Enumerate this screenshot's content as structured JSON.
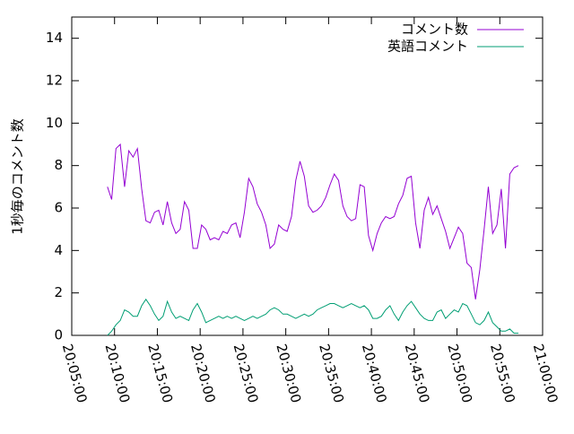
{
  "chart_data": {
    "type": "line",
    "ylabel": "1秒毎のコメント数",
    "x": [
      "20:09:10",
      "20:09:40",
      "20:10:10",
      "20:10:40",
      "20:11:10",
      "20:11:40",
      "20:12:10",
      "20:12:40",
      "20:13:10",
      "20:13:40",
      "20:14:10",
      "20:14:40",
      "20:15:10",
      "20:15:40",
      "20:16:10",
      "20:16:40",
      "20:17:10",
      "20:17:40",
      "20:18:10",
      "20:18:40",
      "20:19:10",
      "20:19:40",
      "20:20:10",
      "20:20:40",
      "20:21:10",
      "20:21:40",
      "20:22:10",
      "20:22:40",
      "20:23:10",
      "20:23:40",
      "20:24:10",
      "20:24:40",
      "20:25:10",
      "20:25:40",
      "20:26:10",
      "20:26:40",
      "20:27:10",
      "20:27:40",
      "20:28:10",
      "20:28:40",
      "20:29:10",
      "20:29:40",
      "20:30:10",
      "20:30:40",
      "20:31:10",
      "20:31:40",
      "20:32:10",
      "20:32:40",
      "20:33:10",
      "20:33:40",
      "20:34:10",
      "20:34:40",
      "20:35:10",
      "20:35:40",
      "20:36:10",
      "20:36:40",
      "20:37:10",
      "20:37:40",
      "20:38:10",
      "20:38:40",
      "20:39:10",
      "20:39:40",
      "20:40:10",
      "20:40:40",
      "20:41:10",
      "20:41:40",
      "20:42:10",
      "20:42:40",
      "20:43:10",
      "20:43:40",
      "20:44:10",
      "20:44:40",
      "20:45:10",
      "20:45:40",
      "20:46:10",
      "20:46:40",
      "20:47:10",
      "20:47:40",
      "20:48:10",
      "20:48:40",
      "20:49:10",
      "20:49:40",
      "20:50:10",
      "20:50:40",
      "20:51:10",
      "20:51:40",
      "20:52:10",
      "20:52:40",
      "20:53:10",
      "20:53:40",
      "20:54:10",
      "20:54:40",
      "20:55:10",
      "20:55:40",
      "20:56:10",
      "20:56:40",
      "20:57:10"
    ],
    "series": [
      {
        "name": "コメント数",
        "color": "#9400d3",
        "values": [
          7.0,
          6.4,
          8.8,
          9.0,
          7.0,
          8.7,
          8.4,
          8.8,
          6.9,
          5.4,
          5.3,
          5.8,
          5.9,
          5.2,
          6.3,
          5.3,
          4.8,
          5.0,
          6.3,
          5.9,
          4.1,
          4.1,
          5.2,
          5.0,
          4.5,
          4.6,
          4.5,
          4.9,
          4.8,
          5.2,
          5.3,
          4.6,
          5.8,
          7.4,
          7.0,
          6.2,
          5.8,
          5.2,
          4.1,
          4.3,
          5.2,
          5.0,
          4.9,
          5.6,
          7.3,
          8.2,
          7.5,
          6.1,
          5.8,
          5.9,
          6.1,
          6.5,
          7.1,
          7.6,
          7.3,
          6.1,
          5.6,
          5.4,
          5.5,
          7.1,
          7.0,
          4.7,
          4.0,
          4.8,
          5.3,
          5.6,
          5.5,
          5.6,
          6.2,
          6.6,
          7.4,
          7.5,
          5.3,
          4.1,
          5.9,
          6.5,
          5.7,
          6.1,
          5.5,
          4.9,
          4.1,
          4.6,
          5.1,
          4.8,
          3.4,
          3.2,
          1.7,
          3.1,
          5.0,
          7.0,
          4.8,
          5.2,
          6.9,
          4.1,
          7.6,
          7.9,
          8.0
        ]
      },
      {
        "name": "英語コメント",
        "color": "#009e73",
        "values": [
          0,
          0.2,
          0.5,
          0.7,
          1.2,
          1.1,
          0.9,
          0.9,
          1.4,
          1.7,
          1.4,
          1.0,
          0.7,
          0.9,
          1.6,
          1.1,
          0.8,
          0.9,
          0.8,
          0.7,
          1.2,
          1.5,
          1.1,
          0.6,
          0.7,
          0.8,
          0.9,
          0.8,
          0.9,
          0.8,
          0.9,
          0.8,
          0.7,
          0.8,
          0.9,
          0.8,
          0.9,
          1.0,
          1.2,
          1.3,
          1.2,
          1.0,
          1.0,
          0.9,
          0.8,
          0.9,
          1.0,
          0.9,
          1.0,
          1.2,
          1.3,
          1.4,
          1.5,
          1.5,
          1.4,
          1.3,
          1.4,
          1.5,
          1.4,
          1.3,
          1.4,
          1.2,
          0.8,
          0.8,
          0.9,
          1.2,
          1.4,
          1.0,
          0.7,
          1.1,
          1.4,
          1.6,
          1.3,
          1.0,
          0.8,
          0.7,
          0.7,
          1.1,
          1.2,
          0.8,
          1.0,
          1.2,
          1.1,
          1.5,
          1.4,
          1.0,
          0.6,
          0.5,
          0.7,
          1.1,
          0.6,
          0.4,
          0.2,
          0.2,
          0.3,
          0.1,
          0.1
        ]
      }
    ],
    "xlim": [
      "20:05:00",
      "21:00:00"
    ],
    "xticks": [
      "20:05:00",
      "20:10:00",
      "20:15:00",
      "20:20:00",
      "20:25:00",
      "20:30:00",
      "20:35:00",
      "20:40:00",
      "20:45:00",
      "20:50:00",
      "20:55:00",
      "21:00:00"
    ],
    "ylim": [
      0,
      15
    ],
    "yticks": [
      0,
      2,
      4,
      6,
      8,
      10,
      12,
      14
    ],
    "legend": "top-right"
  }
}
